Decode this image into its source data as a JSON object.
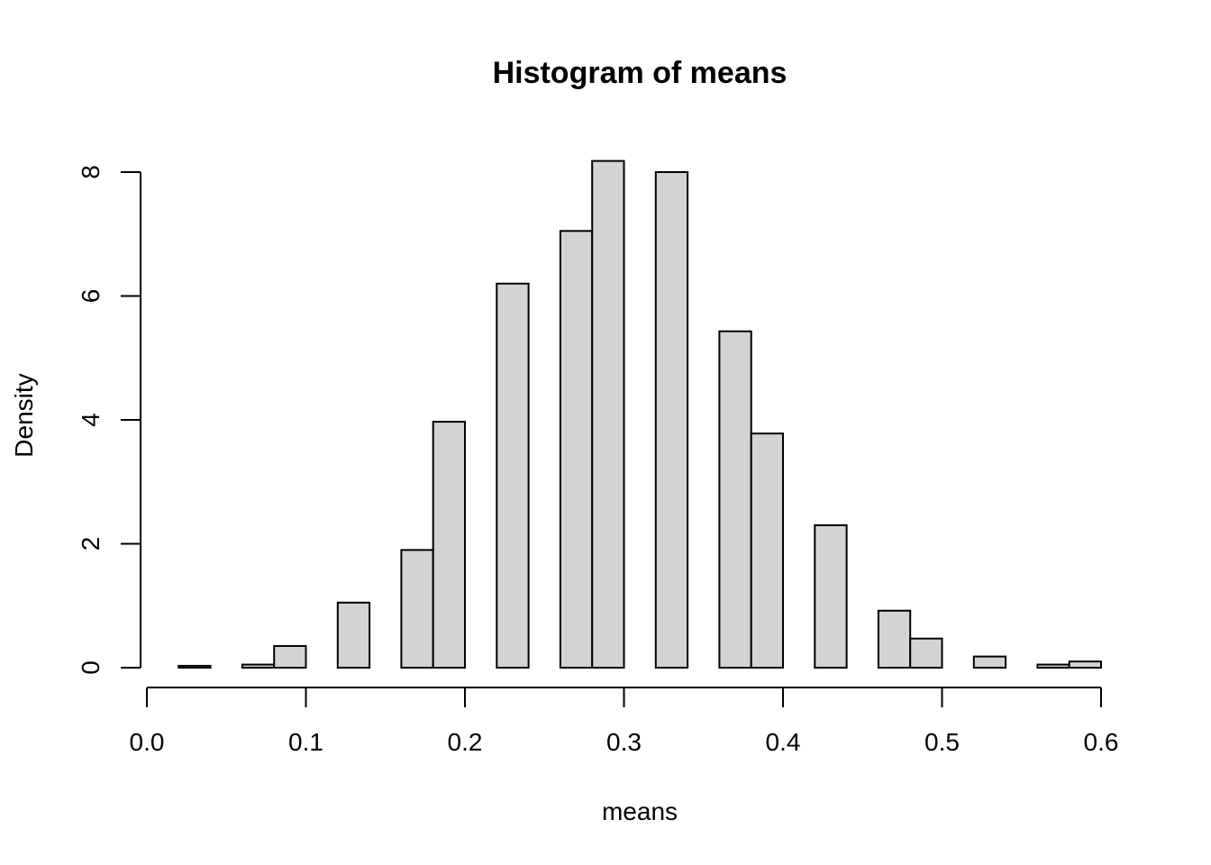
{
  "chart_data": {
    "type": "bar",
    "subtype": "histogram",
    "title": "Histogram of means",
    "xlabel": "means",
    "ylabel": "Density",
    "xlim": [
      0.0,
      0.6
    ],
    "ylim": [
      0,
      8
    ],
    "bin_width": 0.02,
    "bins": [
      {
        "x0": 0.02,
        "x1": 0.04,
        "density": 0.03
      },
      {
        "x0": 0.04,
        "x1": 0.06,
        "density": 0.0
      },
      {
        "x0": 0.06,
        "x1": 0.08,
        "density": 0.05
      },
      {
        "x0": 0.08,
        "x1": 0.1,
        "density": 0.35
      },
      {
        "x0": 0.1,
        "x1": 0.12,
        "density": 0.0
      },
      {
        "x0": 0.12,
        "x1": 0.14,
        "density": 1.05
      },
      {
        "x0": 0.14,
        "x1": 0.16,
        "density": 0.0
      },
      {
        "x0": 0.16,
        "x1": 0.18,
        "density": 1.9
      },
      {
        "x0": 0.18,
        "x1": 0.2,
        "density": 3.97
      },
      {
        "x0": 0.2,
        "x1": 0.22,
        "density": 0.0
      },
      {
        "x0": 0.22,
        "x1": 0.24,
        "density": 6.2
      },
      {
        "x0": 0.24,
        "x1": 0.26,
        "density": 0.0
      },
      {
        "x0": 0.26,
        "x1": 0.28,
        "density": 7.05
      },
      {
        "x0": 0.28,
        "x1": 0.3,
        "density": 8.18
      },
      {
        "x0": 0.3,
        "x1": 0.32,
        "density": 0.0
      },
      {
        "x0": 0.32,
        "x1": 0.34,
        "density": 8.0
      },
      {
        "x0": 0.34,
        "x1": 0.36,
        "density": 0.0
      },
      {
        "x0": 0.36,
        "x1": 0.38,
        "density": 5.43
      },
      {
        "x0": 0.38,
        "x1": 0.4,
        "density": 3.78
      },
      {
        "x0": 0.4,
        "x1": 0.42,
        "density": 0.0
      },
      {
        "x0": 0.42,
        "x1": 0.44,
        "density": 2.3
      },
      {
        "x0": 0.44,
        "x1": 0.46,
        "density": 0.0
      },
      {
        "x0": 0.46,
        "x1": 0.48,
        "density": 0.92
      },
      {
        "x0": 0.48,
        "x1": 0.5,
        "density": 0.47
      },
      {
        "x0": 0.5,
        "x1": 0.52,
        "density": 0.0
      },
      {
        "x0": 0.52,
        "x1": 0.54,
        "density": 0.18
      },
      {
        "x0": 0.54,
        "x1": 0.56,
        "density": 0.0
      },
      {
        "x0": 0.56,
        "x1": 0.58,
        "density": 0.05
      },
      {
        "x0": 0.58,
        "x1": 0.6,
        "density": 0.1
      }
    ],
    "xticks": [
      "0.0",
      "0.1",
      "0.2",
      "0.3",
      "0.4",
      "0.5",
      "0.6"
    ],
    "xtick_values": [
      0.0,
      0.1,
      0.2,
      0.3,
      0.4,
      0.5,
      0.6
    ],
    "yticks": [
      "0",
      "2",
      "4",
      "6",
      "8"
    ],
    "ytick_values": [
      0,
      2,
      4,
      6,
      8
    ],
    "grid": false,
    "legend": "none",
    "colors": {
      "bar_fill": "#d3d3d3",
      "bar_stroke": "#000000"
    }
  }
}
